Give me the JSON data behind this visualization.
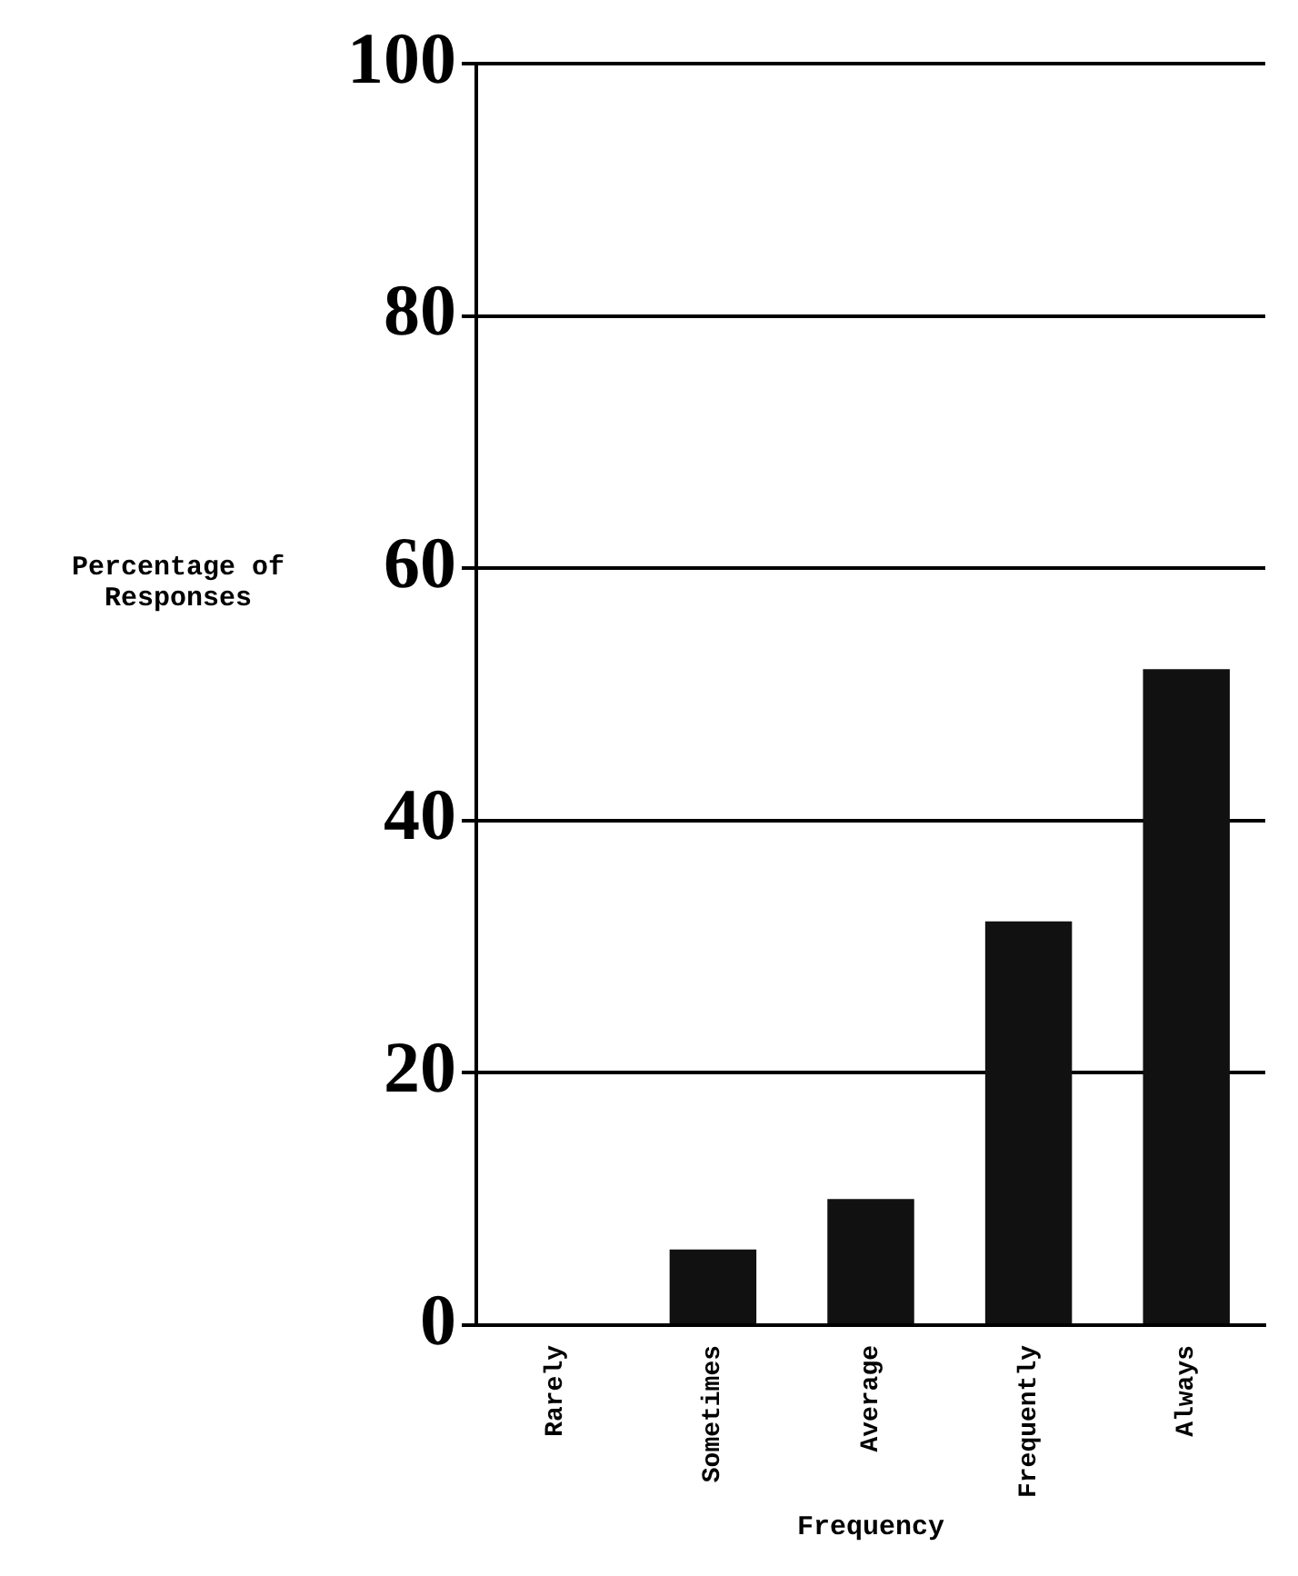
{
  "chart_data": {
    "type": "bar",
    "xlabel": "Frequency",
    "ylabel": "Percentage of Responses",
    "categories": [
      "Rarely",
      "Sometimes",
      "Average",
      "Frequently",
      "Always"
    ],
    "values": [
      0,
      6,
      10,
      32,
      52
    ],
    "color": "#111111",
    "ylim": [
      0,
      100
    ],
    "yticks": [
      0,
      20,
      40,
      60,
      80,
      100
    ],
    "grid": "y"
  }
}
